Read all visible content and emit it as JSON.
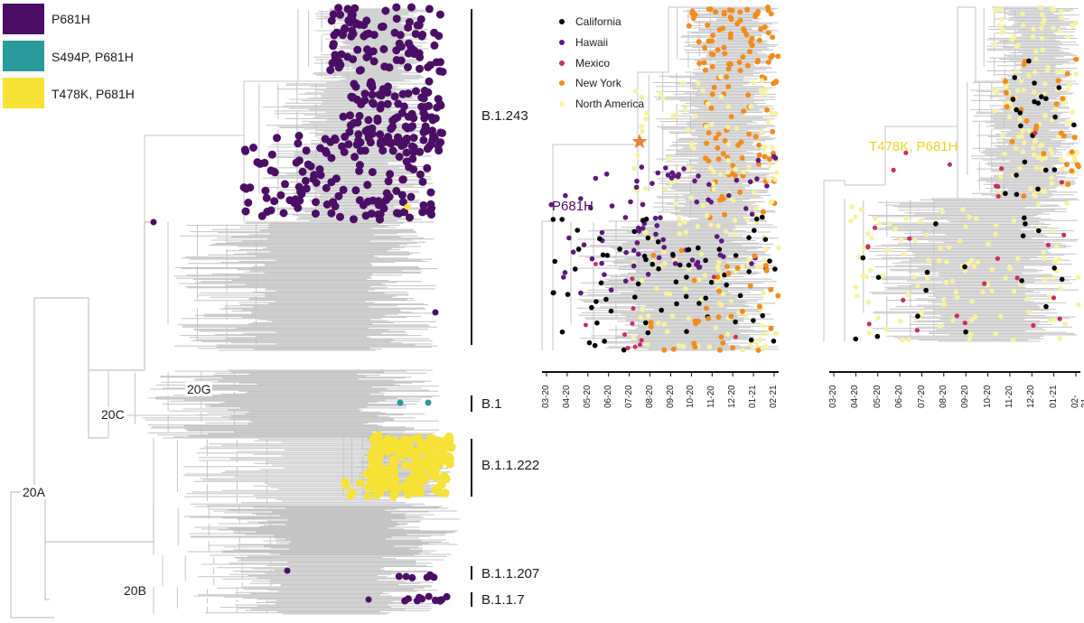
{
  "colors": {
    "branch": "#c4c4c4",
    "p681h": "#4a0f64",
    "s494p": "#2a9a9a",
    "t478k": "#f7e236",
    "california": "#000000",
    "hawaii": "#5c1a80",
    "mexico": "#c9305c",
    "new_york": "#f28c1c",
    "north_america": "#f6f2a0",
    "star": "#e8843a"
  },
  "legend_mutations": [
    {
      "label": "P681H",
      "color_key": "p681h"
    },
    {
      "label": "S494P, P681H",
      "color_key": "s494p"
    },
    {
      "label": "T478K, P681H",
      "color_key": "t478k"
    }
  ],
  "node_labels": [
    "20G",
    "20C",
    "20A",
    "20B"
  ],
  "clade_labels": [
    "B.1.243",
    "B.1",
    "B.1.1.222",
    "B.1.1.207",
    "B.1.1.7"
  ],
  "legend_regions": [
    {
      "label": "California",
      "color_key": "california"
    },
    {
      "label": "Hawaii",
      "color_key": "hawaii"
    },
    {
      "label": "Mexico",
      "color_key": "mexico"
    },
    {
      "label": "New York",
      "color_key": "new_york"
    },
    {
      "label": "North America",
      "color_key": "north_america"
    }
  ],
  "middle_tree": {
    "annotation": "P681H"
  },
  "right_tree": {
    "annotation": "T478K, P681H"
  },
  "time_axis_ticks": [
    "03-20",
    "04-20",
    "05-20",
    "06-20",
    "07-20",
    "08-20",
    "09-20",
    "10-20",
    "11-20",
    "12-20",
    "01-21",
    "02-21"
  ]
}
